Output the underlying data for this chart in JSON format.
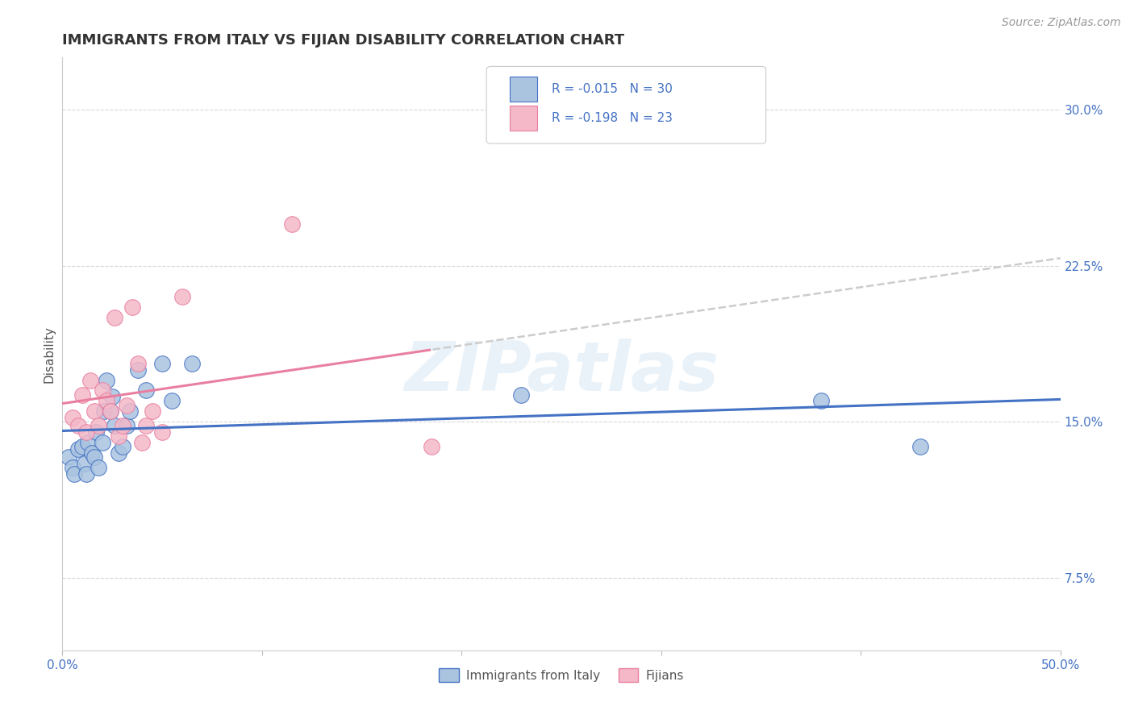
{
  "title": "IMMIGRANTS FROM ITALY VS FIJIAN DISABILITY CORRELATION CHART",
  "source_text": "Source: ZipAtlas.com",
  "ylabel": "Disability",
  "xlim": [
    0.0,
    0.5
  ],
  "ylim": [
    0.04,
    0.325
  ],
  "x_ticks": [
    0.0,
    0.1,
    0.2,
    0.3,
    0.4,
    0.5
  ],
  "x_tick_labels": [
    "0.0%",
    "",
    "",
    "",
    "",
    "50.0%"
  ],
  "y_ticks": [
    0.075,
    0.15,
    0.225,
    0.3
  ],
  "y_tick_labels": [
    "7.5%",
    "15.0%",
    "22.5%",
    "30.0%"
  ],
  "blue_x": [
    0.003,
    0.005,
    0.006,
    0.008,
    0.01,
    0.011,
    0.012,
    0.013,
    0.015,
    0.016,
    0.017,
    0.018,
    0.02,
    0.021,
    0.022,
    0.024,
    0.025,
    0.026,
    0.028,
    0.03,
    0.032,
    0.034,
    0.038,
    0.042,
    0.05,
    0.055,
    0.065,
    0.23,
    0.38,
    0.43
  ],
  "blue_y": [
    0.133,
    0.128,
    0.125,
    0.137,
    0.138,
    0.13,
    0.125,
    0.14,
    0.135,
    0.133,
    0.145,
    0.128,
    0.14,
    0.155,
    0.17,
    0.155,
    0.162,
    0.148,
    0.135,
    0.138,
    0.148,
    0.155,
    0.175,
    0.165,
    0.178,
    0.16,
    0.178,
    0.163,
    0.16,
    0.138
  ],
  "pink_x": [
    0.005,
    0.008,
    0.01,
    0.012,
    0.014,
    0.016,
    0.018,
    0.02,
    0.022,
    0.024,
    0.026,
    0.028,
    0.03,
    0.032,
    0.035,
    0.038,
    0.04,
    0.042,
    0.045,
    0.05,
    0.06,
    0.115,
    0.185
  ],
  "pink_y": [
    0.152,
    0.148,
    0.163,
    0.145,
    0.17,
    0.155,
    0.148,
    0.165,
    0.16,
    0.155,
    0.2,
    0.143,
    0.148,
    0.158,
    0.205,
    0.178,
    0.14,
    0.148,
    0.155,
    0.145,
    0.21,
    0.245,
    0.138
  ],
  "blue_fill": "#aac4e0",
  "pink_fill": "#f4b8c8",
  "blue_edge": "#4472c4",
  "pink_edge": "#e97fa0",
  "blue_line": "#4472c4",
  "pink_line": "#e97fa0",
  "dash_color": "#cccccc",
  "r1": "-0.015",
  "n1": "30",
  "r2": "-0.198",
  "n2": "23",
  "label1": "Immigrants from Italy",
  "label2": "Fijians",
  "watermark": "ZIPatlas",
  "bg": "#ffffff",
  "grid_color": "#d8d8d8",
  "title_color": "#333333",
  "ylabel_color": "#555555",
  "tick_color": "#4472c4",
  "source_color": "#999999",
  "legend_text_color": "#4472c4"
}
